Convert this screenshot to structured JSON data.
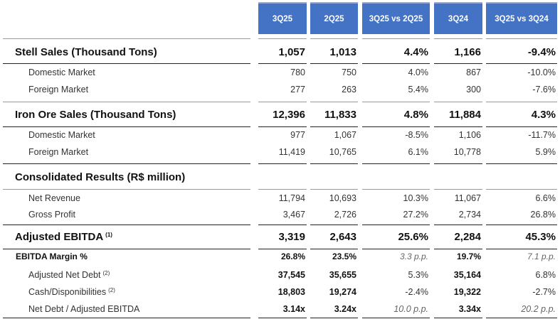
{
  "header": [
    "3Q25",
    "2Q25",
    "3Q25 vs 2Q25",
    "3Q24",
    "3Q25 vs 3Q24"
  ],
  "rows": [
    {
      "label": "Stell Sales (Thousand Tons)",
      "values": [
        "1,057",
        "1,013",
        "4.4%",
        "1,166",
        "-9.4%"
      ]
    },
    {
      "label": "Domestic Market",
      "values": [
        "780",
        "750",
        "4.0%",
        "867",
        "-10.0%"
      ]
    },
    {
      "label": "Foreign Market",
      "values": [
        "277",
        "263",
        "5.4%",
        "300",
        "-7.6%"
      ]
    },
    {
      "label": "Iron Ore Sales (Thousand Tons)",
      "values": [
        "12,396",
        "11,833",
        "4.8%",
        "11,884",
        "4.3%"
      ]
    },
    {
      "label": "Domestic Market",
      "values": [
        "977",
        "1,067",
        "-8.5%",
        "1,106",
        "-11.7%"
      ]
    },
    {
      "label": "Foreign Market",
      "values": [
        "11,419",
        "10,765",
        "6.1%",
        "10,778",
        "5.9%"
      ]
    },
    {
      "label": "Consolidated Results (R$ million)",
      "values": [
        "",
        "",
        "",
        "",
        ""
      ]
    },
    {
      "label": "Net Revenue",
      "values": [
        "11,794",
        "10,693",
        "10.3%",
        "11,067",
        "6.6%"
      ]
    },
    {
      "label": "Gross Profit",
      "values": [
        "3,467",
        "2,726",
        "27.2%",
        "2,734",
        "26.8%"
      ]
    },
    {
      "label": "Adjusted EBITDA",
      "note": "(1)",
      "values": [
        "3,319",
        "2,643",
        "25.6%",
        "2,284",
        "45.3%"
      ]
    },
    {
      "label": "EBITDA Margin %",
      "values": [
        "26.8%",
        "23.5%",
        "3.3 p.p.",
        "19.7%",
        "7.1 p.p."
      ]
    },
    {
      "label": "Adjusted Net Debt",
      "note": "(2)",
      "values": [
        "37,545",
        "35,655",
        "5.3%",
        "35,164",
        "6.8%"
      ]
    },
    {
      "label": "Cash/Disponibilities",
      "note": "(2)",
      "values": [
        "18,803",
        "19,274",
        "-2.4%",
        "19,322",
        "-2.7%"
      ]
    },
    {
      "label": "Net Debt / Adjusted EBITDA",
      "values": [
        "3.14x",
        "3.24x",
        "10.0 p.p.",
        "3.34x",
        "20.2 p.p."
      ]
    }
  ]
}
